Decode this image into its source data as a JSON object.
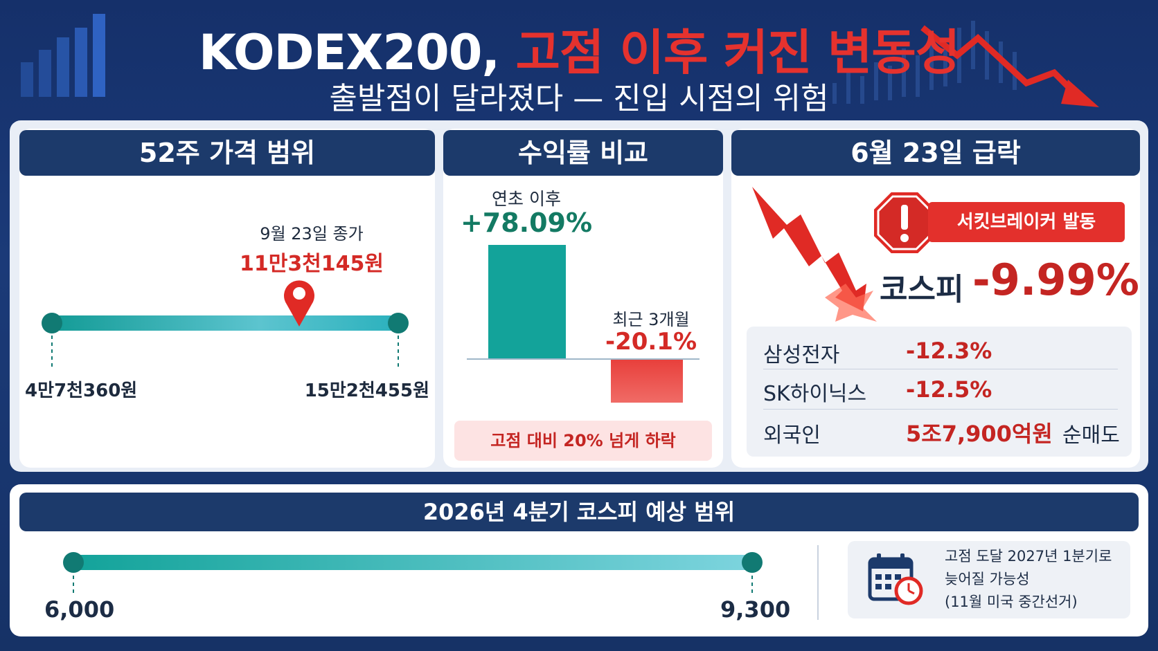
{
  "header": {
    "title_main": "KODEX200,",
    "title_accent": "고점 이후 커진 변동성",
    "subtitle": "출발점이 달라졌다 — 진입 시점의 위험"
  },
  "range52": {
    "heading": "52주 가격 범위",
    "marker_caption": "9월 23일 종가",
    "marker_value": "11만3천145원",
    "low": "4만7천360원",
    "high": "15만2천455원"
  },
  "returns": {
    "heading": "수익률 비교",
    "ytd_label": "연초 이후",
    "ytd_value": "+78.09%",
    "recent_label": "최근 3개월",
    "recent_value": "-20.1%",
    "note": "고점 대비 20% 넘게 하락"
  },
  "crash": {
    "heading": "6월 23일 급락",
    "badge": "서킷브레이커 발동",
    "index_label": "코스피",
    "index_value": "-9.99%",
    "rows": [
      {
        "name": "삼성전자",
        "value": "-12.3%",
        "suffix": ""
      },
      {
        "name": "SK하이닉스",
        "value": "-12.5%",
        "suffix": ""
      },
      {
        "name": "외국인",
        "value": "5조7,900억원",
        "suffix": "순매도"
      }
    ]
  },
  "forecast": {
    "heading": "2026년 4분기 코스피 예상 범위",
    "low": "6,000",
    "high": "9,300",
    "note_lines": [
      "고점 도달 2027년 1분기로",
      "늦어질 가능성",
      "(11월 미국 중간선거)"
    ]
  },
  "colors": {
    "navy": "#1c3a6b",
    "teal": "#13a39a",
    "red": "#d42a26",
    "green": "#137a63"
  }
}
